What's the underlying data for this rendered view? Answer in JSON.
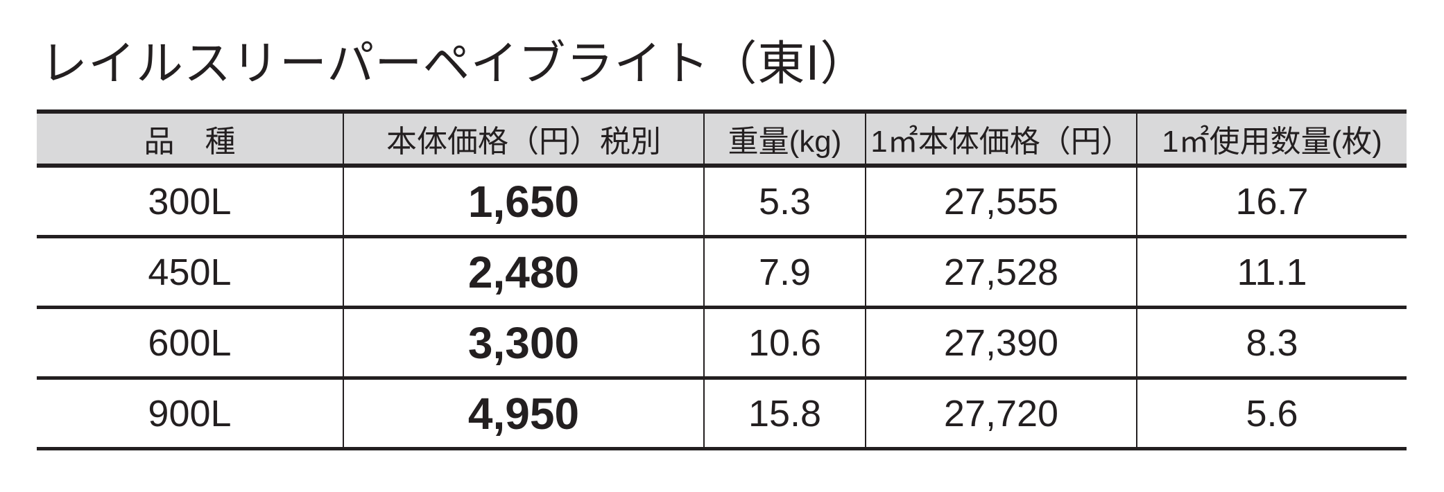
{
  "title": "レイルスリーパーペイブライト（東Ⅰ）",
  "table": {
    "headers": [
      "品　種",
      "本体価格（円）税別",
      "重量(kg)",
      "1㎡本体価格（円）",
      "1㎡使用数量(枚)"
    ],
    "rows": [
      {
        "product": "300L",
        "price": "1,650",
        "weight": "5.3",
        "price_per_m2": "27,555",
        "qty_per_m2": "16.7"
      },
      {
        "product": "450L",
        "price": "2,480",
        "weight": "7.9",
        "price_per_m2": "27,528",
        "qty_per_m2": "11.1"
      },
      {
        "product": "600L",
        "price": "3,300",
        "weight": "10.6",
        "price_per_m2": "27,390",
        "qty_per_m2": "8.3"
      },
      {
        "product": "900L",
        "price": "4,950",
        "weight": "15.8",
        "price_per_m2": "27,720",
        "qty_per_m2": "5.6"
      }
    ]
  },
  "colors": {
    "header_bg": "#d9d9da",
    "text": "#231f20"
  }
}
